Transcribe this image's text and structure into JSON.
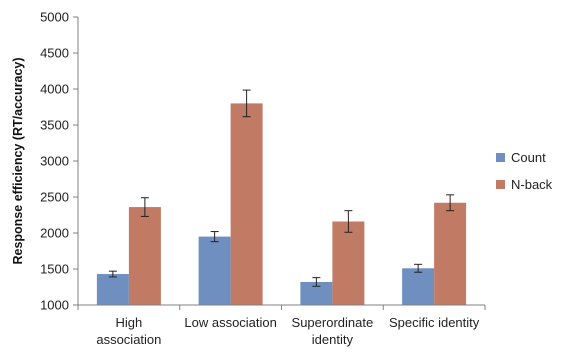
{
  "chart_data": {
    "type": "bar",
    "title": "",
    "xlabel": "",
    "ylabel": "Response efficiency (RT/accuracy)",
    "ylim": [
      1000,
      5000
    ],
    "yticks": [
      1000,
      1500,
      2000,
      2500,
      3000,
      3500,
      4000,
      4500,
      5000
    ],
    "grid": false,
    "legend_position": "right",
    "categories": [
      [
        "High",
        "association"
      ],
      [
        "Low association"
      ],
      [
        "Superordinate",
        "identity"
      ],
      [
        "Specific identity"
      ]
    ],
    "series": [
      {
        "name": "Count",
        "color": "#6f8fc0",
        "values": [
          1430,
          1950,
          1320,
          1510
        ],
        "errors": [
          40,
          70,
          60,
          55
        ]
      },
      {
        "name": "N-back",
        "color": "#c17a63",
        "values": [
          2360,
          3800,
          2160,
          2420
        ],
        "errors": [
          130,
          185,
          150,
          110
        ]
      }
    ]
  }
}
